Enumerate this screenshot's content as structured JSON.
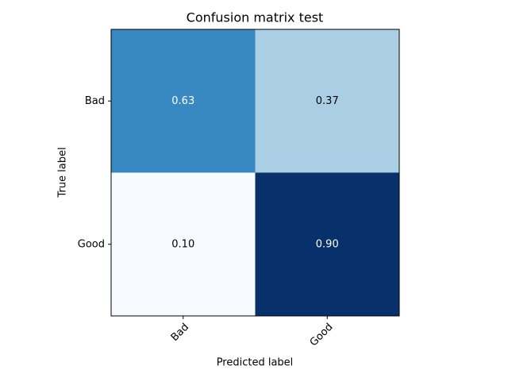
{
  "chart_data": {
    "type": "heatmap",
    "title": "Confusion matrix test",
    "x_label": "Predicted label",
    "y_label": "True label",
    "x_categories": [
      "Bad",
      "Good"
    ],
    "y_categories": [
      "Bad",
      "Good"
    ],
    "values": [
      [
        0.63,
        0.37
      ],
      [
        0.1,
        0.9
      ]
    ],
    "value_labels": [
      [
        "0.63",
        "0.37"
      ],
      [
        "0.10",
        "0.90"
      ]
    ],
    "colormap": "Blues"
  }
}
